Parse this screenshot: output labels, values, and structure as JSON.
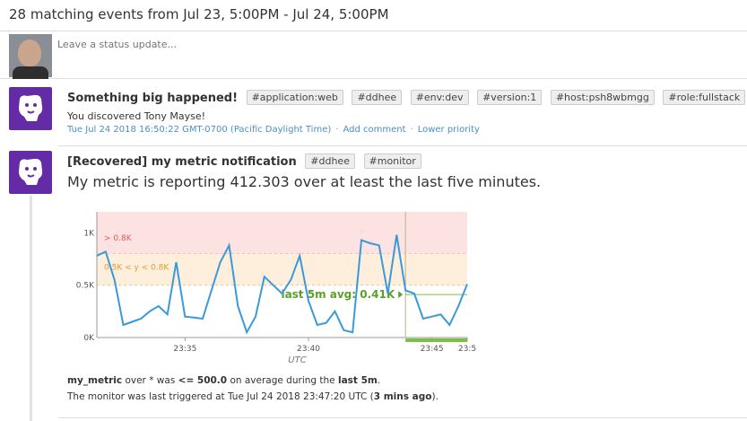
{
  "header": {
    "title": "28 matching events from Jul 23, 5:00PM - Jul 24, 5:00PM"
  },
  "status": {
    "placeholder": "Leave a status update..."
  },
  "events": [
    {
      "title": "Something big happened!",
      "tags": [
        "#application:web",
        "#ddhee",
        "#env:dev",
        "#version:1",
        "#host:psh8wbmgg",
        "#role:fullstack"
      ],
      "text": "You discovered Tony Mayse!",
      "timestamp": "Tue Jul 24 2018 16:50:22 GMT-0700 (Pacific Daylight Time)",
      "actions": [
        "Add comment",
        "Lower priority"
      ]
    },
    {
      "title": "[Recovered] my metric notification",
      "tags": [
        "#ddhee",
        "#monitor"
      ],
      "message": "My metric is reporting 412.303 over at least the last five minutes.",
      "summary": {
        "metric": "my_metric",
        "t1": " over * was ",
        "condition": "<= 500.0",
        "t2": " on average during the ",
        "window": "last 5m",
        "t3": ".",
        "line2_prefix": "The monitor was last triggered at Tue Jul 24 2018 23:47:20 UTC (",
        "ago": "3 mins ago",
        "line2_suffix": ")."
      }
    }
  ],
  "chart_data": {
    "type": "line",
    "xlabel": "UTC",
    "x_tick_labels": [
      "23:35",
      "23:40",
      "23:45",
      "23:5"
    ],
    "y_tick_labels": [
      "0K",
      "0.5K",
      "1K"
    ],
    "ylim": [
      0,
      1.2
    ],
    "thresholds": [
      {
        "label": "> 0.8K",
        "from": 0.8,
        "to": 1.2,
        "color": "#fde2e2"
      },
      {
        "label": "0.5K < y < 0.8K",
        "from": 0.5,
        "to": 0.8,
        "color": "#fdefdc"
      }
    ],
    "avg_label": "last 5m avg: 0.41K",
    "avg_value": 0.41,
    "series": [
      {
        "color": "#3a9ad9",
        "x": [
          0,
          1,
          2,
          3,
          4,
          5,
          6,
          7,
          8,
          9,
          10,
          11,
          12,
          13,
          14,
          15,
          16,
          17,
          18,
          19,
          20,
          21,
          22,
          23,
          24,
          25,
          26,
          27,
          28,
          29,
          30,
          31,
          32,
          33,
          34,
          35,
          36,
          37,
          38,
          39,
          40,
          41,
          42
        ],
        "y": [
          0.78,
          0.82,
          0.55,
          0.12,
          0.15,
          0.18,
          0.25,
          0.3,
          0.22,
          0.72,
          0.2,
          0.19,
          0.18,
          0.45,
          0.72,
          0.88,
          0.3,
          0.05,
          0.2,
          0.58,
          0.5,
          0.42,
          0.55,
          0.78,
          0.35,
          0.12,
          0.14,
          0.25,
          0.07,
          0.05,
          0.93,
          0.9,
          0.88,
          0.42,
          0.98,
          0.45,
          0.42,
          0.18,
          0.2,
          0.22,
          0.12,
          0.3,
          0.51
        ]
      }
    ]
  }
}
